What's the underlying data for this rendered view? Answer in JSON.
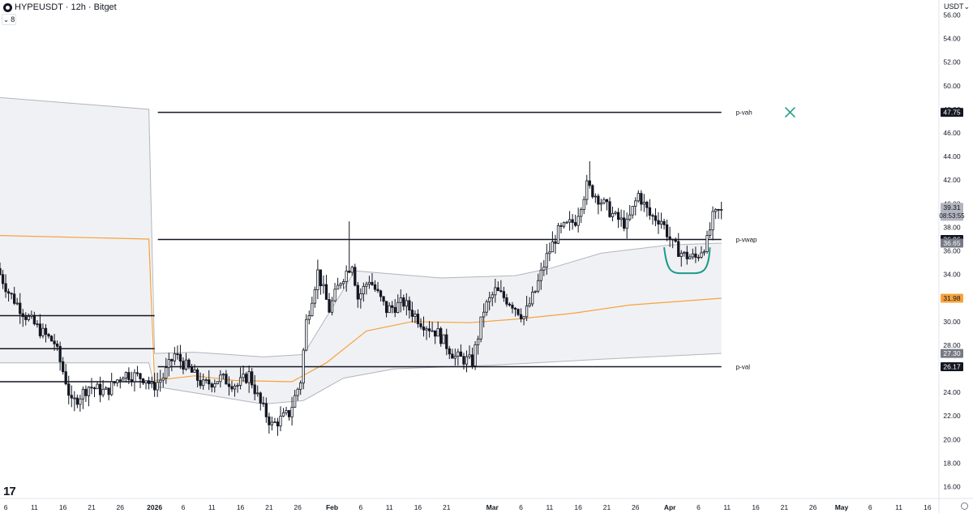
{
  "header": {
    "title": "HYPEUSDT · 12h · Bitget",
    "collapse_label": "8",
    "currency": "USDT"
  },
  "colors": {
    "candle": "#131722",
    "level_line": "#131722",
    "vwap": "#f7a23b",
    "band": "#b2b5be",
    "band_fill": "#f0f1f4",
    "annotation": "#1f9a8a",
    "background": "#ffffff"
  },
  "icons": [
    "tradingview-logo-icon",
    "gear-icon",
    "chevron-down-icon"
  ],
  "chart_data": {
    "type": "candlestick",
    "symbol": "HYPEUSDT",
    "interval": "12h",
    "exchange": "Bitget",
    "y_axis": {
      "min": 15,
      "max": 57,
      "ticks": [
        "56.00",
        "54.00",
        "52.00",
        "50.00",
        "48.00",
        "46.00",
        "44.00",
        "42.00",
        "40.00",
        "38.00",
        "36.00",
        "34.00",
        "32.00",
        "30.00",
        "28.00",
        "26.00",
        "24.00",
        "22.00",
        "20.00",
        "18.00",
        "16.00"
      ],
      "tick_values": [
        56,
        54,
        52,
        50,
        48,
        46,
        44,
        42,
        40,
        38,
        36,
        34,
        32,
        30,
        28,
        26,
        24,
        22,
        20,
        18,
        16
      ]
    },
    "x_axis": {
      "start_date": "2025-12-05",
      "end_date": "2026-05-18",
      "tick_labels": [
        {
          "date": "2025-12-06",
          "label": "6"
        },
        {
          "date": "2025-12-11",
          "label": "11"
        },
        {
          "date": "2025-12-16",
          "label": "16"
        },
        {
          "date": "2025-12-21",
          "label": "21"
        },
        {
          "date": "2025-12-26",
          "label": "26"
        },
        {
          "date": "2026-01-01",
          "label": "2026"
        },
        {
          "date": "2026-01-06",
          "label": "6"
        },
        {
          "date": "2026-01-11",
          "label": "11"
        },
        {
          "date": "2026-01-16",
          "label": "16"
        },
        {
          "date": "2026-01-21",
          "label": "21"
        },
        {
          "date": "2026-01-26",
          "label": "26"
        },
        {
          "date": "2026-02-01",
          "label": "Feb"
        },
        {
          "date": "2026-02-06",
          "label": "6"
        },
        {
          "date": "2026-02-11",
          "label": "11"
        },
        {
          "date": "2026-02-16",
          "label": "16"
        },
        {
          "date": "2026-02-21",
          "label": "21"
        },
        {
          "date": "2026-03-01",
          "label": "Mar"
        },
        {
          "date": "2026-03-06",
          "label": "6"
        },
        {
          "date": "2026-03-11",
          "label": "11"
        },
        {
          "date": "2026-03-16",
          "label": "16"
        },
        {
          "date": "2026-03-21",
          "label": "21"
        },
        {
          "date": "2026-03-26",
          "label": "26"
        },
        {
          "date": "2026-04-01",
          "label": "Apr"
        },
        {
          "date": "2026-04-06",
          "label": "6"
        },
        {
          "date": "2026-04-11",
          "label": "11"
        },
        {
          "date": "2026-04-16",
          "label": "16"
        },
        {
          "date": "2026-04-21",
          "label": "21"
        },
        {
          "date": "2026-04-26",
          "label": "26"
        },
        {
          "date": "2026-05-01",
          "label": "May"
        },
        {
          "date": "2026-05-06",
          "label": "6"
        },
        {
          "date": "2026-05-11",
          "label": "11"
        },
        {
          "date": "2026-05-16",
          "label": "16"
        }
      ]
    },
    "price_path": [
      {
        "date": "2025-12-05",
        "price": 34.5
      },
      {
        "date": "2025-12-07",
        "price": 32.5
      },
      {
        "date": "2025-12-10",
        "price": 30.5
      },
      {
        "date": "2025-12-13",
        "price": 29.0
      },
      {
        "date": "2025-12-15",
        "price": 28.2
      },
      {
        "date": "2025-12-17",
        "price": 25.0
      },
      {
        "date": "2025-12-18",
        "price": 23.0
      },
      {
        "date": "2025-12-21",
        "price": 24.5
      },
      {
        "date": "2025-12-24",
        "price": 24.0
      },
      {
        "date": "2025-12-27",
        "price": 25.6
      },
      {
        "date": "2025-12-31",
        "price": 25.2
      },
      {
        "date": "2026-01-01",
        "price": 24.4
      },
      {
        "date": "2026-01-03",
        "price": 25.3
      },
      {
        "date": "2026-01-05",
        "price": 27.2
      },
      {
        "date": "2026-01-07",
        "price": 26.2
      },
      {
        "date": "2026-01-10",
        "price": 24.6
      },
      {
        "date": "2026-01-13",
        "price": 25.2
      },
      {
        "date": "2026-01-16",
        "price": 24.6
      },
      {
        "date": "2026-01-18",
        "price": 25.5
      },
      {
        "date": "2026-01-20",
        "price": 23.0
      },
      {
        "date": "2026-01-22",
        "price": 21.2
      },
      {
        "date": "2026-01-25",
        "price": 22.2
      },
      {
        "date": "2026-01-27",
        "price": 25.0
      },
      {
        "date": "2026-01-28",
        "price": 30.0
      },
      {
        "date": "2026-01-30",
        "price": 34.2
      },
      {
        "date": "2026-02-01",
        "price": 31.0
      },
      {
        "date": "2026-02-03",
        "price": 33.5
      },
      {
        "date": "2026-02-05",
        "price": 35.0
      },
      {
        "date": "2026-02-06",
        "price": 32.0
      },
      {
        "date": "2026-02-08",
        "price": 33.6
      },
      {
        "date": "2026-02-11",
        "price": 31.0
      },
      {
        "date": "2026-02-14",
        "price": 31.6
      },
      {
        "date": "2026-02-17",
        "price": 30.0
      },
      {
        "date": "2026-02-20",
        "price": 29.0
      },
      {
        "date": "2026-02-23",
        "price": 27.0
      },
      {
        "date": "2026-02-26",
        "price": 26.6
      },
      {
        "date": "2026-02-28",
        "price": 31.0
      },
      {
        "date": "2026-03-02",
        "price": 32.6
      },
      {
        "date": "2026-03-05",
        "price": 31.5
      },
      {
        "date": "2026-03-07",
        "price": 30.4
      },
      {
        "date": "2026-03-09",
        "price": 32.6
      },
      {
        "date": "2026-03-11",
        "price": 35.5
      },
      {
        "date": "2026-03-13",
        "price": 37.6
      },
      {
        "date": "2026-03-16",
        "price": 38.6
      },
      {
        "date": "2026-03-18",
        "price": 41.5
      },
      {
        "date": "2026-03-20",
        "price": 40.5
      },
      {
        "date": "2026-03-23",
        "price": 38.8
      },
      {
        "date": "2026-03-25",
        "price": 38.2
      },
      {
        "date": "2026-03-27",
        "price": 40.8
      },
      {
        "date": "2026-03-29",
        "price": 39.0
      },
      {
        "date": "2026-03-31",
        "price": 38.6
      },
      {
        "date": "2026-04-02",
        "price": 36.5
      },
      {
        "date": "2026-04-04",
        "price": 35.6
      },
      {
        "date": "2026-04-06",
        "price": 35.4
      },
      {
        "date": "2026-04-08",
        "price": 36.8
      },
      {
        "date": "2026-04-09",
        "price": 38.8
      },
      {
        "date": "2026-04-10",
        "price": 39.31
      }
    ],
    "wick_extremes": [
      {
        "date": "2026-02-04",
        "high": 38.5
      },
      {
        "date": "2026-03-18",
        "high": 43.6
      },
      {
        "date": "2026-01-23",
        "low": 20.7
      },
      {
        "date": "2025-12-18",
        "low": 22.4
      }
    ],
    "levels": [
      {
        "name": "p-vah",
        "value": 47.75,
        "from": "2026-01-01",
        "to": "2026-04-10"
      },
      {
        "name": "p-vwap",
        "value": 36.96,
        "from": "2026-01-01",
        "to": "2026-04-10"
      },
      {
        "name": "p-val",
        "value": 26.17,
        "from": "2026-01-01",
        "to": "2026-04-10"
      },
      {
        "name": "",
        "value": 30.5,
        "from": "2025-12-05",
        "to": "2026-01-01"
      },
      {
        "name": "",
        "value": 27.7,
        "from": "2025-12-05",
        "to": "2026-01-01"
      },
      {
        "name": "",
        "value": 24.9,
        "from": "2025-12-05",
        "to": "2026-01-01"
      }
    ],
    "vwap_series": [
      {
        "date": "2025-12-05",
        "value": 37.3
      },
      {
        "date": "2025-12-31",
        "value": 37.0
      },
      {
        "date": "2026-01-01",
        "value": 25.0
      },
      {
        "date": "2026-01-08",
        "value": 25.4
      },
      {
        "date": "2026-01-15",
        "value": 25.0
      },
      {
        "date": "2026-01-25",
        "value": 24.9
      },
      {
        "date": "2026-01-31",
        "value": 26.5
      },
      {
        "date": "2026-02-07",
        "value": 29.2
      },
      {
        "date": "2026-02-15",
        "value": 30.0
      },
      {
        "date": "2026-02-25",
        "value": 29.9
      },
      {
        "date": "2026-03-05",
        "value": 30.2
      },
      {
        "date": "2026-03-15",
        "value": 30.7
      },
      {
        "date": "2026-03-25",
        "value": 31.4
      },
      {
        "date": "2026-04-05",
        "value": 31.8
      },
      {
        "date": "2026-04-10",
        "value": 31.98
      }
    ],
    "upper_band": [
      {
        "date": "2025-12-05",
        "value": 49.0
      },
      {
        "date": "2025-12-31",
        "value": 48.0
      },
      {
        "date": "2026-01-01",
        "value": 27.3
      },
      {
        "date": "2026-01-08",
        "value": 27.4
      },
      {
        "date": "2026-01-20",
        "value": 27.0
      },
      {
        "date": "2026-01-27",
        "value": 27.2
      },
      {
        "date": "2026-02-05",
        "value": 34.3
      },
      {
        "date": "2026-02-20",
        "value": 33.7
      },
      {
        "date": "2026-03-05",
        "value": 33.9
      },
      {
        "date": "2026-03-11",
        "value": 34.5
      },
      {
        "date": "2026-03-20",
        "value": 35.8
      },
      {
        "date": "2026-04-01",
        "value": 36.5
      },
      {
        "date": "2026-04-10",
        "value": 36.65
      }
    ],
    "lower_band": [
      {
        "date": "2025-12-05",
        "value": 26.5
      },
      {
        "date": "2025-12-31",
        "value": 26.5
      },
      {
        "date": "2026-01-01",
        "value": 24.5
      },
      {
        "date": "2026-01-10",
        "value": 23.8
      },
      {
        "date": "2026-01-20",
        "value": 23.0
      },
      {
        "date": "2026-01-27",
        "value": 23.3
      },
      {
        "date": "2026-02-03",
        "value": 25.2
      },
      {
        "date": "2026-02-12",
        "value": 26.0
      },
      {
        "date": "2026-03-01",
        "value": 26.3
      },
      {
        "date": "2026-03-20",
        "value": 26.8
      },
      {
        "date": "2026-04-10",
        "value": 27.3
      }
    ],
    "price_labels": [
      {
        "value": 47.75,
        "text": "47.75",
        "bg": "#131722",
        "fg": "#ffffff"
      },
      {
        "value": 39.31,
        "text": "39.31",
        "sub": "08:53:55",
        "bg": "#b2b5be",
        "fg": "#131722"
      },
      {
        "value": 36.96,
        "text": "36.96",
        "bg": "#131722",
        "fg": "#ffffff"
      },
      {
        "value": 36.65,
        "text": "36.65",
        "bg": "#787b86",
        "fg": "#ffffff"
      },
      {
        "value": 31.98,
        "text": "31.98",
        "bg": "#f7a23b",
        "fg": "#131722"
      },
      {
        "value": 27.3,
        "text": "27.30",
        "bg": "#787b86",
        "fg": "#ffffff"
      },
      {
        "value": 26.17,
        "text": "26.17",
        "bg": "#131722",
        "fg": "#ffffff"
      }
    ],
    "annotations": [
      {
        "type": "cross",
        "date": "2026-04-22",
        "value": 47.75
      },
      {
        "type": "arc",
        "from": "2026-03-31",
        "to": "2026-04-08",
        "top": 36.3,
        "bottom": 34.1
      }
    ]
  }
}
